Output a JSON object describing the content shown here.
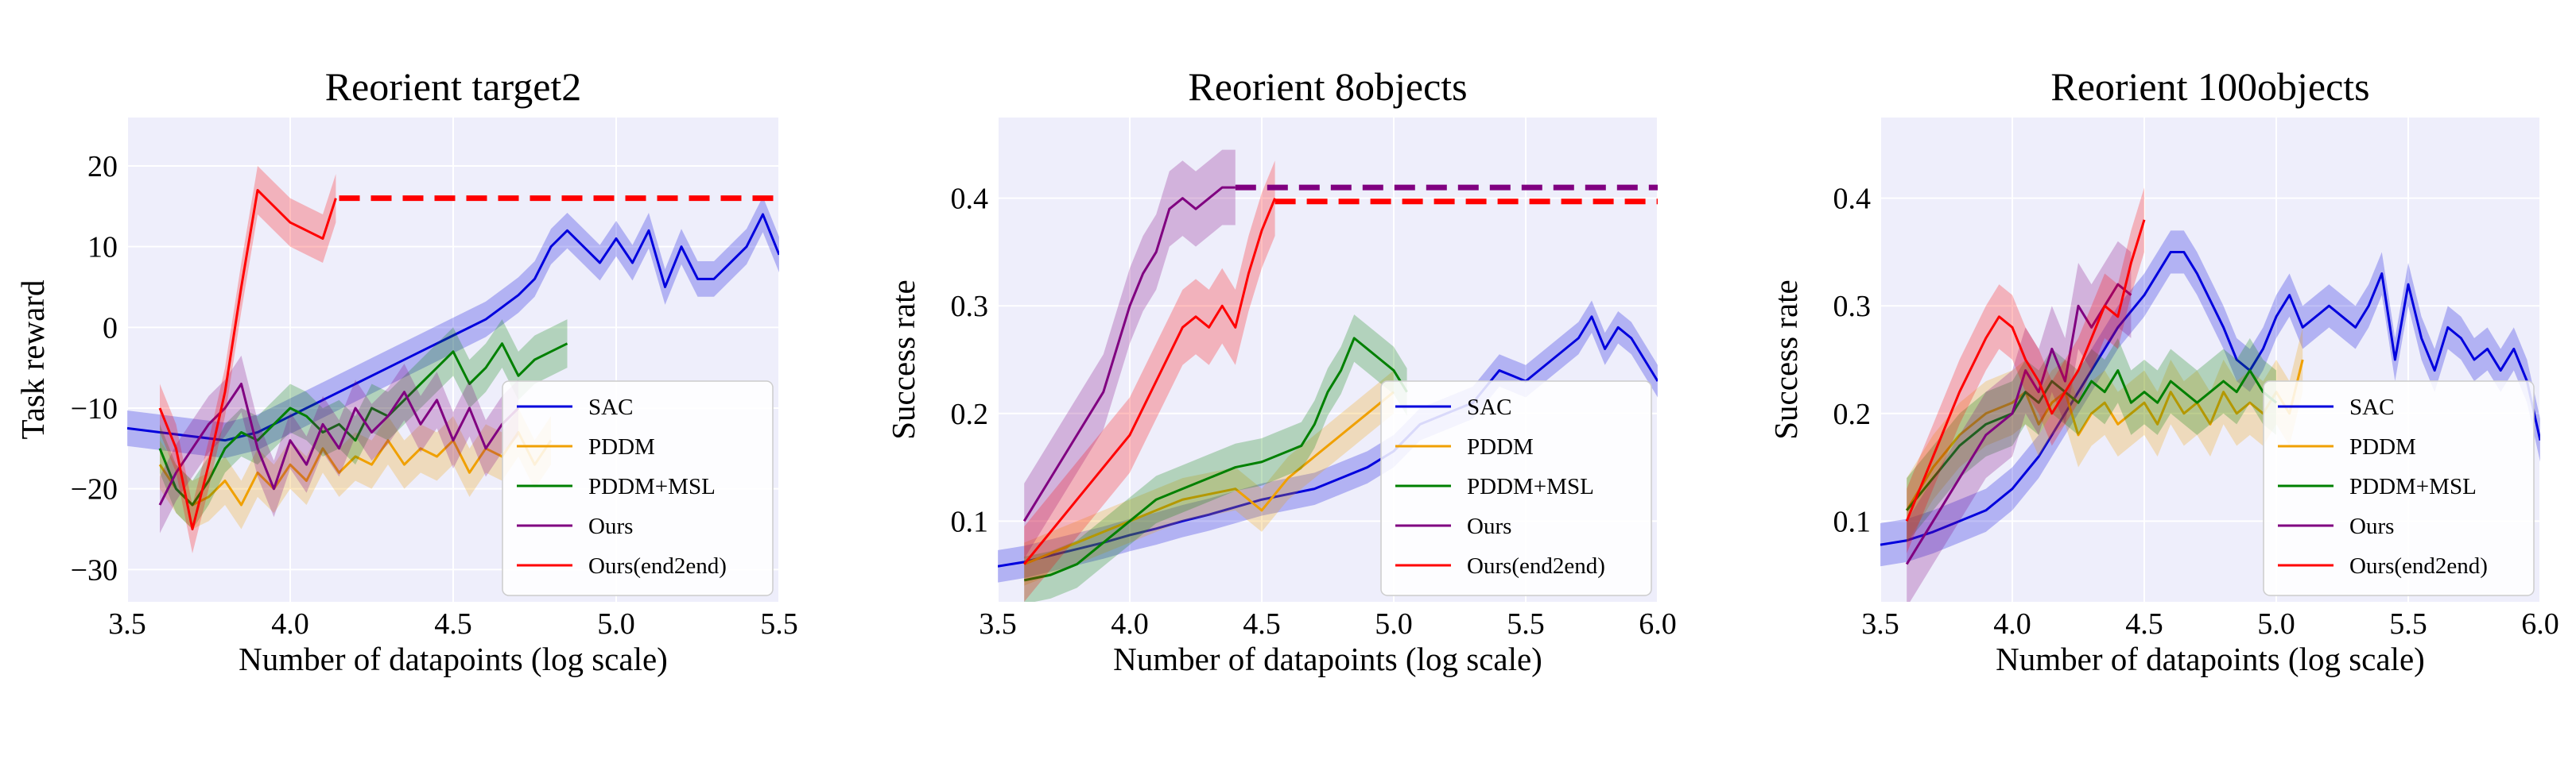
{
  "chart_data": [
    {
      "type": "line",
      "title": "Reorient target2",
      "xlabel": "Number of datapoints (log scale)",
      "ylabel": "Task reward",
      "xlim": [
        3.5,
        5.5
      ],
      "ylim": [
        -34,
        26
      ],
      "xticks": [
        3.5,
        4.0,
        4.5,
        5.0,
        5.5
      ],
      "xtick_labels": [
        "3.5",
        "4.0",
        "4.5",
        "5.0",
        "5.5"
      ],
      "yticks": [
        -30,
        -20,
        -10,
        0,
        10,
        20
      ],
      "ytick_labels": [
        "−30",
        "−20",
        "−10",
        "0",
        "10",
        "20"
      ],
      "grid": true,
      "legend_position": "lower-right",
      "series": [
        {
          "name": "SAC",
          "color": "#0000dd",
          "band": 2.2,
          "x": [
            3.5,
            3.6,
            3.7,
            3.8,
            3.9,
            4.0,
            4.1,
            4.2,
            4.3,
            4.4,
            4.5,
            4.6,
            4.7,
            4.75,
            4.8,
            4.85,
            4.9,
            4.95,
            5.0,
            5.05,
            5.1,
            5.15,
            5.2,
            5.25,
            5.3,
            5.35,
            5.4,
            5.45,
            5.5
          ],
          "y": [
            -12.5,
            -13,
            -13.5,
            -14,
            -13,
            -11,
            -9,
            -7,
            -5,
            -3,
            -1,
            1,
            4,
            6,
            10,
            12,
            10,
            8,
            11,
            8,
            12,
            5,
            10,
            6,
            6,
            8,
            10,
            14,
            9
          ]
        },
        {
          "name": "PDDM",
          "color": "#f0a000",
          "band": 3,
          "x": [
            3.6,
            3.65,
            3.7,
            3.75,
            3.8,
            3.85,
            3.9,
            3.95,
            4.0,
            4.05,
            4.1,
            4.15,
            4.2,
            4.25,
            4.3,
            4.35,
            4.4,
            4.45,
            4.5,
            4.55,
            4.6,
            4.65,
            4.7,
            4.75,
            4.8
          ],
          "y": [
            -17,
            -20,
            -22,
            -21,
            -19,
            -22,
            -18,
            -20,
            -17,
            -19,
            -15,
            -18,
            -16,
            -17,
            -14,
            -17,
            -15,
            -16,
            -14,
            -18,
            -15,
            -16,
            -13,
            -17,
            -14
          ]
        },
        {
          "name": "PDDM+MSL",
          "color": "#008000",
          "band": 3,
          "x": [
            3.6,
            3.65,
            3.7,
            3.75,
            3.8,
            3.85,
            3.9,
            3.95,
            4.0,
            4.05,
            4.1,
            4.15,
            4.2,
            4.25,
            4.3,
            4.35,
            4.4,
            4.45,
            4.5,
            4.55,
            4.6,
            4.65,
            4.7,
            4.75,
            4.8,
            4.85
          ],
          "y": [
            -15,
            -20,
            -22,
            -19,
            -15,
            -13,
            -14,
            -12,
            -10,
            -11,
            -13,
            -12,
            -14,
            -10,
            -11,
            -9,
            -7,
            -5,
            -3,
            -7,
            -5,
            -2,
            -6,
            -4,
            -3,
            -2
          ]
        },
        {
          "name": "Ours",
          "color": "#800080",
          "band": 3.5,
          "x": [
            3.6,
            3.65,
            3.7,
            3.75,
            3.8,
            3.85,
            3.9,
            3.95,
            4.0,
            4.05,
            4.1,
            4.15,
            4.2,
            4.25,
            4.3,
            4.35,
            4.4,
            4.45,
            4.5,
            4.55,
            4.6,
            4.65,
            4.7
          ],
          "y": [
            -22,
            -18,
            -15,
            -12,
            -10,
            -7,
            -15,
            -20,
            -14,
            -17,
            -12,
            -15,
            -10,
            -13,
            -11,
            -8,
            -12,
            -9,
            -14,
            -10,
            -15,
            -12,
            -10
          ]
        },
        {
          "name": "Ours(end2end)",
          "color": "#ff0000",
          "band": 3,
          "x": [
            3.6,
            3.65,
            3.7,
            3.75,
            3.8,
            3.85,
            3.9,
            3.95,
            4.0,
            4.05,
            4.1,
            4.14
          ],
          "y": [
            -10,
            -15,
            -25,
            -17,
            -8,
            5,
            17,
            15,
            13,
            12,
            11,
            16
          ]
        }
      ],
      "dashed": [
        {
          "color": "#ff0000",
          "x": [
            4.15,
            5.5
          ],
          "y": 16
        }
      ],
      "legend": [
        "SAC",
        "PDDM",
        "PDDM+MSL",
        "Ours",
        "Ours(end2end)"
      ]
    },
    {
      "type": "line",
      "title": "Reorient 8objects",
      "xlabel": "Number of datapoints (log scale)",
      "ylabel": "Success rate",
      "xlim": [
        3.5,
        6.0
      ],
      "ylim": [
        0.025,
        0.475
      ],
      "xticks": [
        3.5,
        4.0,
        4.5,
        5.0,
        5.5,
        6.0
      ],
      "xtick_labels": [
        "3.5",
        "4.0",
        "4.5",
        "5.0",
        "5.5",
        "6.0"
      ],
      "yticks": [
        0.1,
        0.2,
        0.3,
        0.4
      ],
      "ytick_labels": [
        "0.1",
        "0.2",
        "0.3",
        "0.4"
      ],
      "grid": true,
      "legend_position": "lower-right",
      "series": [
        {
          "name": "SAC",
          "color": "#0000dd",
          "band": 0.015,
          "x": [
            3.5,
            3.6,
            3.7,
            3.8,
            3.9,
            4.0,
            4.1,
            4.2,
            4.3,
            4.4,
            4.5,
            4.6,
            4.7,
            4.8,
            4.9,
            5.0,
            5.1,
            5.2,
            5.3,
            5.4,
            5.5,
            5.6,
            5.7,
            5.75,
            5.8,
            5.85,
            5.9,
            5.95,
            6.0
          ],
          "y": [
            0.058,
            0.062,
            0.068,
            0.074,
            0.08,
            0.087,
            0.093,
            0.1,
            0.106,
            0.113,
            0.12,
            0.125,
            0.13,
            0.14,
            0.15,
            0.165,
            0.19,
            0.2,
            0.21,
            0.24,
            0.23,
            0.25,
            0.27,
            0.29,
            0.26,
            0.28,
            0.27,
            0.25,
            0.23
          ]
        },
        {
          "name": "PDDM",
          "color": "#f0a000",
          "band": 0.02,
          "x": [
            3.6,
            3.7,
            3.8,
            3.9,
            4.0,
            4.1,
            4.2,
            4.3,
            4.4,
            4.45,
            4.5,
            4.55,
            4.6,
            4.65,
            4.7,
            4.75,
            4.8,
            4.85,
            4.9,
            4.95,
            5.0
          ],
          "y": [
            0.06,
            0.07,
            0.08,
            0.09,
            0.1,
            0.11,
            0.12,
            0.125,
            0.13,
            0.12,
            0.11,
            0.125,
            0.14,
            0.15,
            0.16,
            0.17,
            0.18,
            0.19,
            0.2,
            0.21,
            0.22
          ]
        },
        {
          "name": "PDDM+MSL",
          "color": "#008000",
          "band": 0.022,
          "x": [
            3.6,
            3.7,
            3.8,
            3.9,
            4.0,
            4.1,
            4.2,
            4.3,
            4.4,
            4.5,
            4.55,
            4.6,
            4.65,
            4.7,
            4.75,
            4.8,
            4.85,
            4.9,
            4.95,
            5.0,
            5.05
          ],
          "y": [
            0.045,
            0.05,
            0.06,
            0.08,
            0.1,
            0.12,
            0.13,
            0.14,
            0.15,
            0.155,
            0.16,
            0.165,
            0.17,
            0.19,
            0.22,
            0.24,
            0.27,
            0.26,
            0.25,
            0.24,
            0.22
          ]
        },
        {
          "name": "Ours",
          "color": "#800080",
          "band": 0.035,
          "x": [
            3.6,
            3.7,
            3.8,
            3.9,
            4.0,
            4.05,
            4.1,
            4.15,
            4.2,
            4.25,
            4.3,
            4.35,
            4.4
          ],
          "y": [
            0.1,
            0.14,
            0.18,
            0.22,
            0.3,
            0.33,
            0.35,
            0.39,
            0.4,
            0.39,
            0.4,
            0.41,
            0.41
          ]
        },
        {
          "name": "Ours(end2end)",
          "color": "#ff0000",
          "band": 0.035,
          "x": [
            3.6,
            3.7,
            3.8,
            3.9,
            4.0,
            4.1,
            4.2,
            4.25,
            4.3,
            4.35,
            4.4,
            4.45,
            4.5,
            4.55
          ],
          "y": [
            0.06,
            0.09,
            0.12,
            0.15,
            0.18,
            0.23,
            0.28,
            0.29,
            0.28,
            0.3,
            0.28,
            0.33,
            0.37,
            0.4
          ]
        }
      ],
      "dashed": [
        {
          "color": "#800080",
          "x": [
            4.4,
            6.0
          ],
          "y": 0.41
        },
        {
          "color": "#ff0000",
          "x": [
            4.55,
            6.0
          ],
          "y": 0.397
        }
      ],
      "legend": [
        "SAC",
        "PDDM",
        "PDDM+MSL",
        "Ours",
        "Ours(end2end)"
      ]
    },
    {
      "type": "line",
      "title": "Reorient 100objects",
      "xlabel": "Number of datapoints (log scale)",
      "ylabel": "Success rate",
      "xlim": [
        3.5,
        6.0
      ],
      "ylim": [
        0.025,
        0.475
      ],
      "xticks": [
        3.5,
        4.0,
        4.5,
        5.0,
        5.5,
        6.0
      ],
      "xtick_labels": [
        "3.5",
        "4.0",
        "4.5",
        "5.0",
        "5.5",
        "6.0"
      ],
      "yticks": [
        0.1,
        0.2,
        0.3,
        0.4
      ],
      "ytick_labels": [
        "0.1",
        "0.2",
        "0.3",
        "0.4"
      ],
      "grid": true,
      "legend_position": "lower-right",
      "series": [
        {
          "name": "SAC",
          "color": "#0000dd",
          "band": 0.02,
          "x": [
            3.5,
            3.6,
            3.7,
            3.8,
            3.9,
            4.0,
            4.1,
            4.2,
            4.3,
            4.4,
            4.5,
            4.6,
            4.65,
            4.7,
            4.8,
            4.85,
            4.9,
            4.95,
            5.0,
            5.05,
            5.1,
            5.2,
            5.3,
            5.35,
            5.4,
            5.45,
            5.5,
            5.55,
            5.6,
            5.65,
            5.7,
            5.75,
            5.8,
            5.85,
            5.9,
            5.95,
            6.0
          ],
          "y": [
            0.078,
            0.082,
            0.09,
            0.1,
            0.11,
            0.13,
            0.16,
            0.2,
            0.24,
            0.28,
            0.31,
            0.35,
            0.35,
            0.33,
            0.28,
            0.25,
            0.24,
            0.26,
            0.29,
            0.31,
            0.28,
            0.3,
            0.28,
            0.3,
            0.33,
            0.25,
            0.32,
            0.27,
            0.24,
            0.28,
            0.27,
            0.25,
            0.26,
            0.24,
            0.26,
            0.23,
            0.175
          ]
        },
        {
          "name": "PDDM",
          "color": "#f0a000",
          "band": 0.03,
          "x": [
            3.6,
            3.7,
            3.8,
            3.9,
            4.0,
            4.05,
            4.1,
            4.15,
            4.2,
            4.25,
            4.3,
            4.35,
            4.4,
            4.45,
            4.5,
            4.55,
            4.6,
            4.65,
            4.7,
            4.75,
            4.8,
            4.85,
            4.9,
            4.95,
            5.0,
            5.05,
            5.1
          ],
          "y": [
            0.11,
            0.15,
            0.18,
            0.2,
            0.21,
            0.22,
            0.19,
            0.21,
            0.22,
            0.18,
            0.2,
            0.21,
            0.19,
            0.2,
            0.21,
            0.19,
            0.22,
            0.2,
            0.21,
            0.19,
            0.22,
            0.2,
            0.21,
            0.2,
            0.22,
            0.2,
            0.25
          ]
        },
        {
          "name": "PDDM+MSL",
          "color": "#008000",
          "band": 0.03,
          "x": [
            3.6,
            3.7,
            3.8,
            3.9,
            4.0,
            4.05,
            4.1,
            4.15,
            4.2,
            4.25,
            4.3,
            4.35,
            4.4,
            4.45,
            4.5,
            4.55,
            4.6,
            4.65,
            4.7,
            4.75,
            4.8,
            4.85,
            4.9,
            4.95,
            5.0
          ],
          "y": [
            0.11,
            0.14,
            0.17,
            0.19,
            0.2,
            0.22,
            0.21,
            0.23,
            0.22,
            0.21,
            0.23,
            0.22,
            0.24,
            0.21,
            0.22,
            0.21,
            0.23,
            0.22,
            0.21,
            0.22,
            0.23,
            0.22,
            0.24,
            0.22,
            0.21
          ]
        },
        {
          "name": "Ours",
          "color": "#800080",
          "band": 0.04,
          "x": [
            3.6,
            3.7,
            3.8,
            3.9,
            4.0,
            4.05,
            4.1,
            4.15,
            4.2,
            4.25,
            4.3,
            4.35,
            4.4,
            4.45
          ],
          "y": [
            0.06,
            0.1,
            0.14,
            0.18,
            0.2,
            0.24,
            0.22,
            0.26,
            0.23,
            0.3,
            0.28,
            0.3,
            0.32,
            0.31
          ]
        },
        {
          "name": "Ours(end2end)",
          "color": "#ff0000",
          "band": 0.03,
          "x": [
            3.6,
            3.7,
            3.8,
            3.9,
            3.95,
            4.0,
            4.05,
            4.1,
            4.15,
            4.2,
            4.25,
            4.3,
            4.35,
            4.4,
            4.45,
            4.5
          ],
          "y": [
            0.1,
            0.16,
            0.22,
            0.27,
            0.29,
            0.28,
            0.25,
            0.23,
            0.2,
            0.22,
            0.24,
            0.27,
            0.3,
            0.29,
            0.34,
            0.38
          ]
        }
      ],
      "dashed": [],
      "legend": [
        "SAC",
        "PDDM",
        "PDDM+MSL",
        "Ours",
        "Ours(end2end)"
      ]
    }
  ]
}
